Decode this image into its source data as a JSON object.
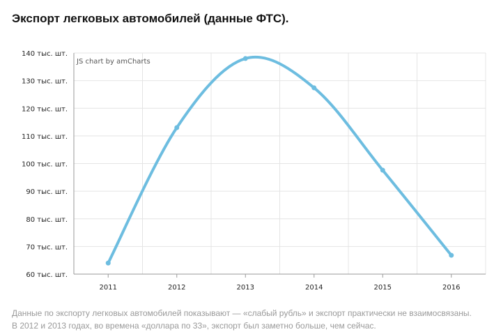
{
  "title": "Экспорт легковых автомобилей (данные ФТС).",
  "credit": "JS chart by amCharts",
  "caption": [
    "Данные по экспорту легковых автомобилей показывают — «слабый рубль» и экспорт практически не взаимосвязаны.",
    "В 2012 и 2013 годах, во времена «доллара по 33», экспорт был заметно больше, чем сейчас."
  ],
  "chart_data": {
    "type": "line",
    "smoothed": true,
    "categories": [
      "2011",
      "2012",
      "2013",
      "2014",
      "2015",
      "2016"
    ],
    "values": [
      64,
      113,
      138,
      127.4,
      97.6,
      66.8
    ],
    "ylim": [
      60,
      140
    ],
    "yticks": [
      60,
      70,
      80,
      90,
      100,
      110,
      120,
      130,
      140
    ],
    "ytick_suffix": " тыс. шт.",
    "grid": true,
    "color": "#6dbde0"
  }
}
